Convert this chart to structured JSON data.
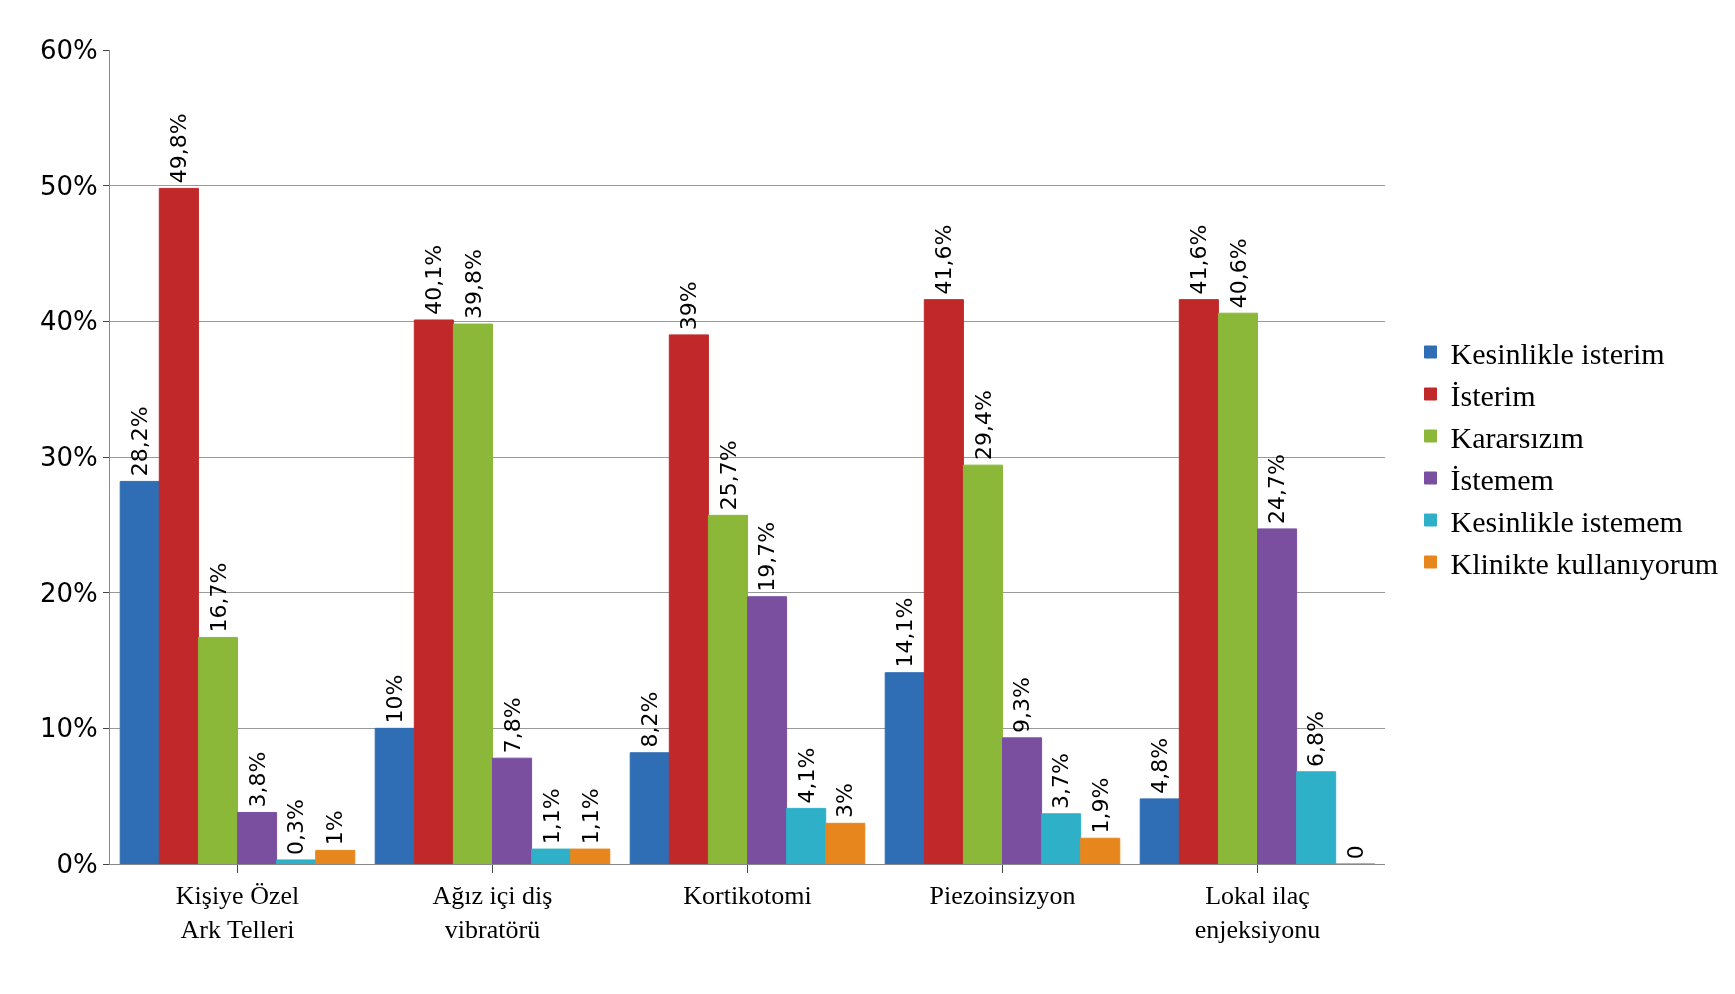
{
  "chart_data": {
    "type": "bar",
    "categories": [
      "Kişiye Özel\nArk Telleri",
      "Ağız içi diş\nvibratörü",
      "Kortikotomi",
      "Piezoinsizyon",
      "Lokal ilaç\nenjeksiyonu"
    ],
    "series": [
      {
        "name": "Kesinlikle isterim",
        "color": "#2f6db5",
        "values": [
          28.2,
          10,
          8.2,
          14.1,
          4.8
        ],
        "value_labels": [
          "28,2%",
          "10%",
          "8,2%",
          "14,1%",
          "4,8%"
        ]
      },
      {
        "name": "İsterim",
        "color": "#c0282a",
        "values": [
          49.8,
          40.1,
          39,
          41.6,
          41.6
        ],
        "value_labels": [
          "49,8%",
          "40,1%",
          "39%",
          "41,6%",
          "41,6%"
        ]
      },
      {
        "name": "Kararsızım",
        "color": "#8cb83a",
        "values": [
          16.7,
          39.8,
          25.7,
          29.4,
          40.6
        ],
        "value_labels": [
          "16,7%",
          "39,8%",
          "25,7%",
          "29,4%",
          "40,6%"
        ]
      },
      {
        "name": "İstemem",
        "color": "#7a4fa0",
        "values": [
          3.8,
          7.8,
          19.7,
          9.3,
          24.7
        ],
        "value_labels": [
          "3,8%",
          "7,8%",
          "19,7%",
          "9,3%",
          "24,7%"
        ]
      },
      {
        "name": "Kesinlikle istemem",
        "color": "#2eb0c8",
        "values": [
          0.3,
          1.1,
          4.1,
          3.7,
          6.8
        ],
        "value_labels": [
          "0,3%",
          "1,1%",
          "4,1%",
          "3,7%",
          "6,8%"
        ]
      },
      {
        "name": "Klinikte kullanıyorum",
        "color": "#e8861e",
        "values": [
          1,
          1.1,
          3,
          1.9,
          0
        ],
        "value_labels": [
          "1%",
          "1,1%",
          "3%",
          "1,9%",
          "0"
        ]
      }
    ],
    "ylim": [
      0,
      60
    ],
    "yticks": [
      {
        "value": 0,
        "label": "0%"
      },
      {
        "value": 10,
        "label": "10%"
      },
      {
        "value": 20,
        "label": "20%"
      },
      {
        "value": 30,
        "label": "30%"
      },
      {
        "value": 40,
        "label": "40%"
      },
      {
        "value": 50,
        "label": "50%"
      },
      {
        "value": 60,
        "label": "60%"
      }
    ],
    "grid": "y",
    "legend": "right"
  }
}
